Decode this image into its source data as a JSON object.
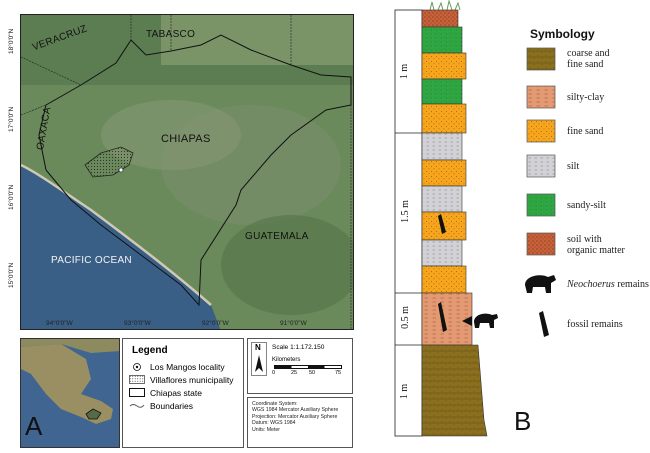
{
  "panel_a": {
    "letter": "A",
    "map": {
      "labels": {
        "tabasco": "TABASCO",
        "veracruz": "VERACRUZ",
        "oaxaca": "OAXACA",
        "chiapas": "CHIAPAS",
        "guatemala": "GUATEMALA",
        "pacific": "PACIFIC OCEAN"
      },
      "lon_ticks": [
        "94°0'0\"W",
        "93°0'0\"W",
        "92°0'0\"W",
        "91°0'0\"W"
      ],
      "lat_ticks": [
        "18°0'0\"N",
        "17°0'0\"N",
        "16°0'0\"N",
        "15°0'0\"N"
      ]
    },
    "legend": {
      "title": "Legend",
      "items": [
        "Los Mangos locality",
        "Villaflores municipality",
        "Chiapas state",
        "Boundaries"
      ]
    },
    "scale": {
      "north": "N",
      "scale_text": "Scale  1:1.172.150",
      "units_label": "Kilometers",
      "ticks": [
        "0",
        "25",
        "50",
        "75"
      ]
    },
    "coordinate_system": [
      "Coordinate System:",
      "WGS 1984 Mercator Auxiliary Sphere",
      "Projection: Mercator Auxiliary Sphere",
      "Datum: WGS 1984",
      "Units: Meter"
    ]
  },
  "panel_b": {
    "letter": "B",
    "thickness_labels": [
      "1 m",
      "1.5 m",
      "0.5 m",
      "1 m"
    ],
    "symbology": {
      "title": "Symbology",
      "items": [
        {
          "label": "coarse and\nfine sand",
          "label_1": "coarse and",
          "label_2": "fine sand",
          "color": "#8a6f1e"
        },
        {
          "label_1": "silty-clay",
          "label_2": "",
          "color": "#e39a72"
        },
        {
          "label_1": "fine sand",
          "label_2": "",
          "color": "#f6a51c"
        },
        {
          "label_1": "silt",
          "label_2": "",
          "color": "#d2d2d6"
        },
        {
          "label_1": "sandy-silt",
          "label_2": "",
          "color": "#2fa843"
        },
        {
          "label_1": "soil with",
          "label_2": "organic matter",
          "color": "#c8613a"
        }
      ],
      "neochoerus_italic": "Neochoerus",
      "neochoerus_rest": " remains",
      "fossil": "fossil remains"
    }
  }
}
